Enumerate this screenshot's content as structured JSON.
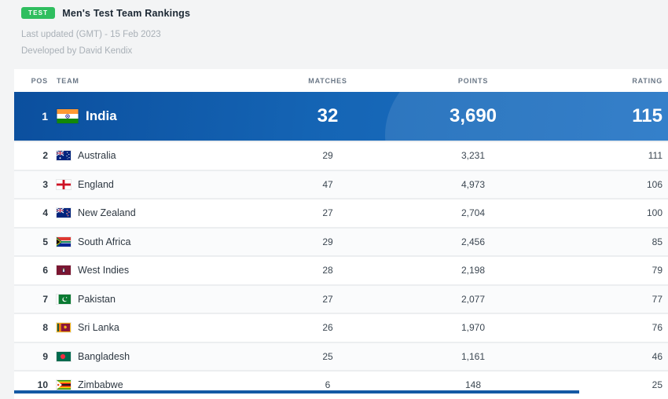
{
  "header": {
    "badge": "TEST",
    "title": "Men's Test Team Rankings",
    "last_updated": "Last updated (GMT) - 15 Feb 2023",
    "developed_by": "Developed by David Kendix"
  },
  "colors": {
    "badge_green": "#2fbe5f",
    "highlight_blue_dark": "#0b4f9e",
    "highlight_blue_light": "#1e72c4"
  },
  "table": {
    "columns": [
      "POS",
      "TEAM",
      "MATCHES",
      "POINTS",
      "RATING"
    ],
    "rows": [
      {
        "pos": "1",
        "team": "India",
        "flag": "india-flag",
        "matches": "32",
        "points": "3,690",
        "rating": "115",
        "highlighted": true
      },
      {
        "pos": "2",
        "team": "Australia",
        "flag": "australia-flag",
        "matches": "29",
        "points": "3,231",
        "rating": "111"
      },
      {
        "pos": "3",
        "team": "England",
        "flag": "england-flag",
        "matches": "47",
        "points": "4,973",
        "rating": "106"
      },
      {
        "pos": "4",
        "team": "New Zealand",
        "flag": "new-zealand-flag",
        "matches": "27",
        "points": "2,704",
        "rating": "100"
      },
      {
        "pos": "5",
        "team": "South Africa",
        "flag": "south-africa-flag",
        "matches": "29",
        "points": "2,456",
        "rating": "85"
      },
      {
        "pos": "6",
        "team": "West Indies",
        "flag": "west-indies-flag",
        "matches": "28",
        "points": "2,198",
        "rating": "79"
      },
      {
        "pos": "7",
        "team": "Pakistan",
        "flag": "pakistan-flag",
        "matches": "27",
        "points": "2,077",
        "rating": "77"
      },
      {
        "pos": "8",
        "team": "Sri Lanka",
        "flag": "sri-lanka-flag",
        "matches": "26",
        "points": "1,970",
        "rating": "76"
      },
      {
        "pos": "9",
        "team": "Bangladesh",
        "flag": "bangladesh-flag",
        "matches": "25",
        "points": "1,161",
        "rating": "46"
      },
      {
        "pos": "10",
        "team": "Zimbabwe",
        "flag": "zimbabwe-flag",
        "matches": "6",
        "points": "148",
        "rating": "25"
      }
    ]
  }
}
